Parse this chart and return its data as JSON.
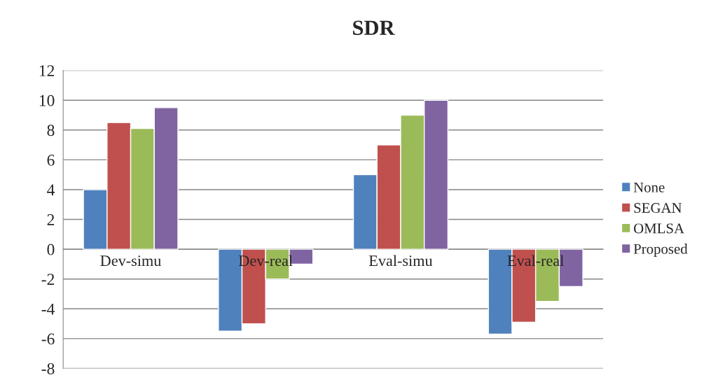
{
  "chart_data": {
    "type": "bar",
    "title": "SDR",
    "categories": [
      "Dev-simu",
      "Dev-real",
      "Eval-simu",
      "Eval-real"
    ],
    "series": [
      {
        "name": "None",
        "color": "#4f81bd",
        "values": [
          4.0,
          -5.5,
          5.0,
          -5.7
        ]
      },
      {
        "name": "SEGAN",
        "color": "#c0504d",
        "values": [
          8.5,
          -5.0,
          7.0,
          -4.9
        ]
      },
      {
        "name": "OMLSA",
        "color": "#9bbb59",
        "values": [
          8.1,
          -2.0,
          9.0,
          -3.5
        ]
      },
      {
        "name": "Proposed",
        "color": "#8064a2",
        "values": [
          9.5,
          -1.0,
          10.0,
          -2.5
        ]
      }
    ],
    "ylim": [
      -8,
      12
    ],
    "yticks": [
      -8,
      -6,
      -4,
      -2,
      0,
      2,
      4,
      6,
      8,
      10,
      12
    ],
    "grid": "y",
    "legend": "right"
  }
}
